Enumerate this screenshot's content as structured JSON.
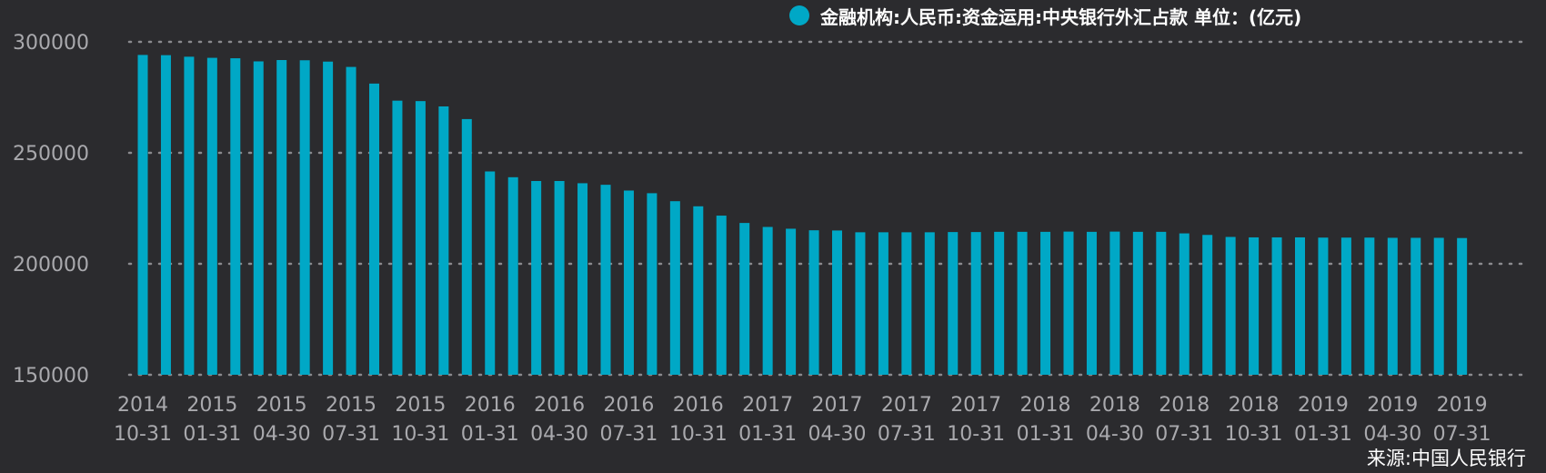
{
  "chart_data": {
    "type": "bar",
    "title": "",
    "xlabel": "",
    "ylabel": "",
    "ylim": [
      150000,
      300000
    ],
    "yticks": [
      300000,
      250000,
      200000,
      150000
    ],
    "grid": true,
    "legend_position": "top-right",
    "series": [
      {
        "name": "金融机构:人民币:资金运用:中央银行外汇占款 单位：(亿元)",
        "color": "#00a8c6",
        "values": [
          294100,
          294000,
          293300,
          292800,
          292600,
          291200,
          291800,
          291700,
          291100,
          288700,
          281200,
          273500,
          273300,
          270900,
          265200,
          241600,
          239000,
          237300,
          237300,
          236300,
          235600,
          233000,
          231800,
          228200,
          225900,
          221700,
          218400,
          216600,
          215800,
          215100,
          215000,
          214200,
          214200,
          214200,
          214200,
          214300,
          214300,
          214400,
          214400,
          214400,
          214500,
          214400,
          214500,
          214400,
          214400,
          213700,
          213000,
          212100,
          211900,
          211900,
          211900,
          211800,
          211800,
          211800,
          211700,
          211700,
          211700,
          211600
        ]
      }
    ],
    "x_tick_labels": [
      {
        "year": "2014",
        "date": "10-31"
      },
      {
        "year": "2015",
        "date": "01-31"
      },
      {
        "year": "2015",
        "date": "04-30"
      },
      {
        "year": "2015",
        "date": "07-31"
      },
      {
        "year": "2015",
        "date": "10-31"
      },
      {
        "year": "2016",
        "date": "01-31"
      },
      {
        "year": "2016",
        "date": "04-30"
      },
      {
        "year": "2016",
        "date": "07-31"
      },
      {
        "year": "2016",
        "date": "10-31"
      },
      {
        "year": "2017",
        "date": "01-31"
      },
      {
        "year": "2017",
        "date": "04-30"
      },
      {
        "year": "2017",
        "date": "07-31"
      },
      {
        "year": "2017",
        "date": "10-31"
      },
      {
        "year": "2018",
        "date": "01-31"
      },
      {
        "year": "2018",
        "date": "04-30"
      },
      {
        "year": "2018",
        "date": "07-31"
      },
      {
        "year": "2018",
        "date": "10-31"
      },
      {
        "year": "2019",
        "date": "01-31"
      },
      {
        "year": "2019",
        "date": "04-30"
      },
      {
        "year": "2019",
        "date": "07-31"
      }
    ],
    "source": "来源:中国人民银行",
    "colors": {
      "background": "#2b2b2e",
      "axis_text": "#a9a9ad",
      "grid": "#8a8a8e",
      "bar": "#00a8c6"
    }
  }
}
